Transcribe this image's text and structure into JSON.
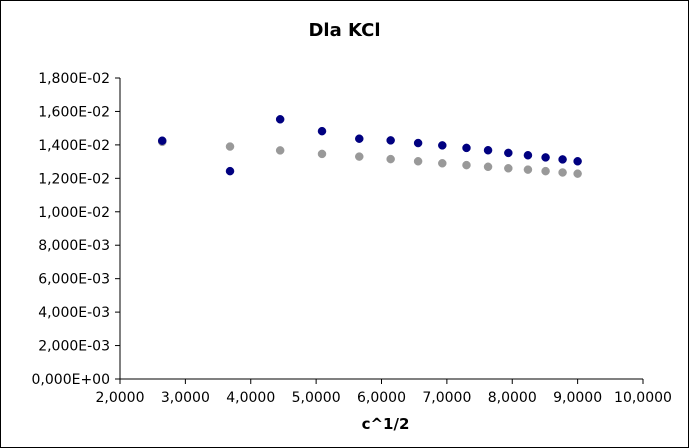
{
  "chart_data": {
    "type": "scatter",
    "title": "Dla KCl",
    "xlabel": "c^1/2",
    "ylabel": "",
    "xlim": [
      2.0,
      10.0
    ],
    "ylim": [
      0.0,
      0.018
    ],
    "grid": false,
    "legend": "none",
    "x_ticks": [
      "2,0000",
      "3,0000",
      "4,0000",
      "5,0000",
      "6,0000",
      "7,0000",
      "8,0000",
      "9,0000",
      "10,0000"
    ],
    "y_ticks": [
      "0,000E+00",
      "2,000E-03",
      "4,000E-03",
      "6,000E-03",
      "8,000E-03",
      "1,000E-02",
      "1,200E-02",
      "1,400E-02",
      "1,600E-02",
      "1,800E-02"
    ],
    "series": [
      {
        "color": "#000080",
        "x": [
          2.646,
          3.683,
          4.45,
          5.09,
          5.66,
          6.14,
          6.56,
          6.93,
          7.3,
          7.63,
          7.94,
          8.24,
          8.51,
          8.77,
          9.0
        ],
        "y": [
          0.01425,
          0.01243,
          0.01553,
          0.01482,
          0.01437,
          0.01427,
          0.01411,
          0.01397,
          0.01382,
          0.01368,
          0.01352,
          0.01338,
          0.01325,
          0.01313,
          0.01302
        ]
      },
      {
        "color": "#999999",
        "x": [
          2.646,
          3.683,
          4.45,
          5.09,
          5.66,
          6.14,
          6.56,
          6.93,
          7.3,
          7.63,
          7.94,
          8.24,
          8.51,
          8.77,
          9.0
        ],
        "y": [
          0.01418,
          0.0139,
          0.01367,
          0.01346,
          0.0133,
          0.01315,
          0.01302,
          0.0129,
          0.01279,
          0.01269,
          0.0126,
          0.01252,
          0.01243,
          0.01235,
          0.01228
        ]
      }
    ]
  }
}
